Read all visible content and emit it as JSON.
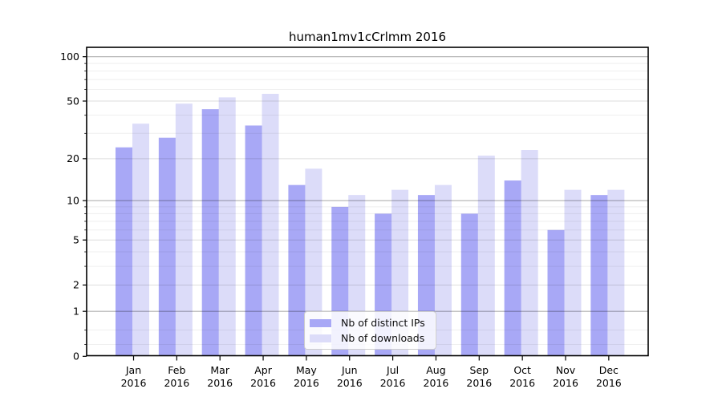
{
  "figure": {
    "background": "#ffffff"
  },
  "title": "human1mv1cCrlmm 2016",
  "legend": {
    "items": [
      {
        "label": "Nb of distinct IPs",
        "color": "#a8a8f6"
      },
      {
        "label": "Nb of downloads",
        "color": "#dcdcf9"
      }
    ]
  },
  "y_axis": {
    "scale": "log10(1+x)",
    "tick_values": [
      0,
      1,
      2,
      5,
      10,
      20,
      50,
      100
    ],
    "labels": [
      "0",
      "1",
      "2",
      "5",
      "10",
      "20",
      "50",
      "100"
    ],
    "decade_values": [
      1,
      10,
      100
    ],
    "sub_values": [
      2,
      5,
      20,
      50
    ],
    "minor_values": [
      0.2,
      0.5,
      3,
      4,
      6,
      7,
      8,
      9,
      30,
      40,
      60,
      70,
      80,
      90
    ],
    "grid_color_decade": "#b0b0b0",
    "grid_color_sub": "#dedede",
    "grid_color_minor": "#efefef"
  },
  "x_axis": {
    "months": [
      "Jan",
      "Feb",
      "Mar",
      "Apr",
      "May",
      "Jun",
      "Jul",
      "Aug",
      "Sep",
      "Oct",
      "Nov",
      "Dec"
    ],
    "year": "2016"
  },
  "chart_data": {
    "type": "bar",
    "title": "human1mv1cCrlmm 2016",
    "categories": [
      "Jan 2016",
      "Feb 2016",
      "Mar 2016",
      "Apr 2016",
      "May 2016",
      "Jun 2016",
      "Jul 2016",
      "Aug 2016",
      "Sep 2016",
      "Oct 2016",
      "Nov 2016",
      "Dec 2016"
    ],
    "series": [
      {
        "name": "Nb of distinct IPs",
        "color": "#a8a8f6",
        "values": [
          24,
          28,
          44,
          34,
          13,
          9,
          8,
          11,
          8,
          14,
          6,
          11
        ]
      },
      {
        "name": "Nb of downloads",
        "color": "#dcdcf9",
        "values": [
          35,
          48,
          53,
          56,
          17,
          11,
          12,
          13,
          21,
          23,
          12,
          12
        ]
      }
    ],
    "yscale": "log1p",
    "ylim": [
      0,
      116
    ],
    "y_ticks": [
      0,
      1,
      2,
      5,
      10,
      20,
      50,
      100
    ],
    "xlabel": "",
    "ylabel": "",
    "grid": "on",
    "legend_position": "lower center"
  }
}
